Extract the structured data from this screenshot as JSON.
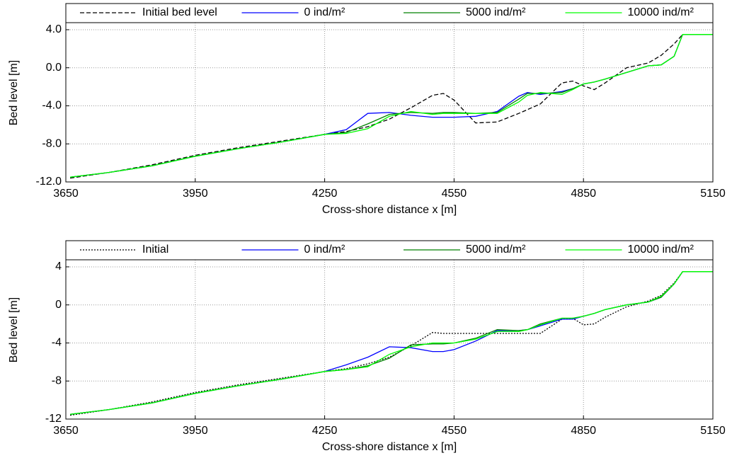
{
  "chart_data": [
    {
      "type": "line",
      "xlabel": "Cross-shore distance x [m]",
      "ylabel": "Bed level [m]",
      "x": [
        3660,
        3750,
        3850,
        3950,
        4050,
        4150,
        4250,
        4300,
        4350,
        4400,
        4450,
        4500,
        4525,
        4550,
        4600,
        4650,
        4700,
        4720,
        4750,
        4800,
        4825,
        4850,
        4875,
        4900,
        4950,
        5000,
        5030,
        5060,
        5080,
        5150
      ],
      "series": [
        {
          "name": "Initial bed level",
          "color": "#000000",
          "linestyle": "dashed",
          "values": [
            -11.6,
            -11.0,
            -10.2,
            -9.2,
            -8.4,
            -7.7,
            -7.0,
            -6.7,
            -6.2,
            -5.4,
            -4.2,
            -2.9,
            -2.7,
            -3.4,
            -5.8,
            -5.7,
            -4.8,
            -4.4,
            -3.8,
            -1.6,
            -1.4,
            -1.9,
            -2.3,
            -1.6,
            0.0,
            0.5,
            1.3,
            2.5,
            3.5,
            3.5
          ]
        },
        {
          "name": "0 ind/m²",
          "color": "#0000ff",
          "linestyle": "solid",
          "values": [
            -11.5,
            -11.0,
            -10.3,
            -9.3,
            -8.5,
            -7.8,
            -7.0,
            -6.5,
            -4.8,
            -4.7,
            -5.0,
            -5.2,
            -5.2,
            -5.2,
            -5.1,
            -4.6,
            -3.0,
            -2.6,
            -2.8,
            -2.5,
            -2.2,
            -1.7,
            -1.5,
            -1.2,
            -0.5,
            0.2,
            0.3,
            1.2,
            3.5,
            3.5
          ]
        },
        {
          "name": "5000 ind/m²",
          "color": "#008000",
          "linestyle": "solid",
          "values": [
            -11.5,
            -11.0,
            -10.3,
            -9.3,
            -8.5,
            -7.8,
            -7.0,
            -6.8,
            -5.9,
            -4.9,
            -4.7,
            -4.8,
            -4.7,
            -4.7,
            -4.8,
            -4.7,
            -3.3,
            -2.7,
            -2.7,
            -2.6,
            -2.2,
            -1.7,
            -1.5,
            -1.2,
            -0.5,
            0.2,
            0.3,
            1.2,
            3.5,
            3.5
          ]
        },
        {
          "name": "10000 ind/m²",
          "color": "#00ff00",
          "linestyle": "solid",
          "values": [
            -11.5,
            -11.0,
            -10.3,
            -9.3,
            -8.5,
            -7.8,
            -7.0,
            -6.9,
            -6.4,
            -5.1,
            -4.6,
            -4.9,
            -4.8,
            -4.8,
            -4.8,
            -4.8,
            -3.6,
            -2.9,
            -2.6,
            -2.8,
            -2.3,
            -1.7,
            -1.5,
            -1.2,
            -0.5,
            0.2,
            0.3,
            1.2,
            3.5,
            3.5
          ]
        }
      ],
      "xlim": [
        3650,
        5150
      ],
      "xticks": [
        3650,
        3950,
        4250,
        4550,
        4850,
        5150
      ],
      "ylim": [
        -12,
        6.75
      ],
      "yticks": [
        {
          "value": 4,
          "label": "4.0"
        },
        {
          "value": 0,
          "label": "0.0"
        },
        {
          "value": -4,
          "label": "-4.0"
        },
        {
          "value": -8,
          "label": "-8.0"
        },
        {
          "value": -12,
          "label": "-12.0"
        }
      ],
      "grid": true,
      "legend": "top"
    },
    {
      "type": "line",
      "xlabel": "Cross-shore distance x [m]",
      "ylabel": "Bed level  [m]",
      "x": [
        3660,
        3750,
        3850,
        3950,
        4050,
        4150,
        4250,
        4300,
        4350,
        4400,
        4450,
        4500,
        4525,
        4550,
        4600,
        4650,
        4700,
        4720,
        4750,
        4800,
        4825,
        4850,
        4875,
        4900,
        4950,
        5000,
        5030,
        5060,
        5080,
        5150
      ],
      "series": [
        {
          "name": "Initial",
          "color": "#000000",
          "linestyle": "dotted",
          "values": [
            -11.6,
            -11.0,
            -10.2,
            -9.2,
            -8.4,
            -7.7,
            -7.0,
            -6.7,
            -6.2,
            -5.5,
            -4.3,
            -2.9,
            -3.0,
            -3.0,
            -3.0,
            -3.0,
            -3.0,
            -3.0,
            -3.0,
            -1.5,
            -1.4,
            -2.1,
            -2.0,
            -1.3,
            -0.2,
            0.4,
            1.0,
            2.3,
            3.5,
            3.5
          ]
        },
        {
          "name": "0 ind/m²",
          "color": "#0000ff",
          "linestyle": "solid",
          "values": [
            -11.5,
            -11.0,
            -10.3,
            -9.3,
            -8.5,
            -7.8,
            -7.0,
            -6.3,
            -5.5,
            -4.4,
            -4.5,
            -4.9,
            -4.9,
            -4.7,
            -3.8,
            -2.7,
            -2.7,
            -2.6,
            -2.2,
            -1.5,
            -1.5,
            -1.2,
            -0.9,
            -0.5,
            0.0,
            0.3,
            0.8,
            2.2,
            3.5,
            3.5
          ]
        },
        {
          "name": "5000 ind/m²",
          "color": "#008000",
          "linestyle": "solid",
          "values": [
            -11.5,
            -11.0,
            -10.3,
            -9.3,
            -8.5,
            -7.8,
            -7.0,
            -6.8,
            -6.4,
            -5.6,
            -4.2,
            -4.1,
            -4.1,
            -4.0,
            -3.5,
            -2.6,
            -2.7,
            -2.6,
            -2.0,
            -1.4,
            -1.4,
            -1.2,
            -0.9,
            -0.5,
            0.0,
            0.3,
            0.8,
            2.2,
            3.5,
            3.5
          ]
        },
        {
          "name": "10000 ind/m²",
          "color": "#00ff00",
          "linestyle": "solid",
          "values": [
            -11.5,
            -11.0,
            -10.3,
            -9.3,
            -8.5,
            -7.8,
            -7.0,
            -6.8,
            -6.5,
            -5.2,
            -4.4,
            -4.0,
            -4.0,
            -4.0,
            -3.6,
            -2.8,
            -2.8,
            -2.6,
            -2.1,
            -1.4,
            -1.4,
            -1.2,
            -0.9,
            -0.5,
            0.0,
            0.3,
            0.9,
            2.2,
            3.5,
            3.5
          ]
        }
      ],
      "xlim": [
        3650,
        5150
      ],
      "xticks": [
        3650,
        3950,
        4250,
        4550,
        4850,
        5150
      ],
      "ylim": [
        -12,
        6.75
      ],
      "yticks": [
        4,
        0,
        -4,
        -8,
        -12
      ],
      "grid": true,
      "legend": "top"
    }
  ]
}
